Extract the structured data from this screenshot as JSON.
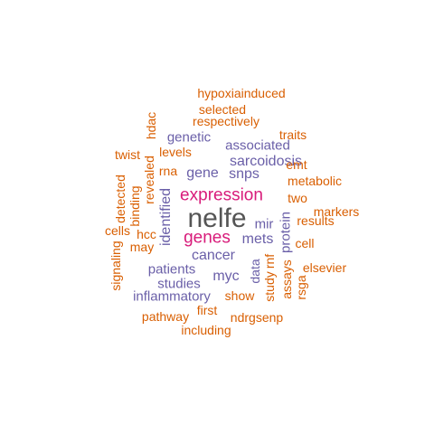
{
  "colors": {
    "orange": "#d95f02",
    "purple": "#6a5fa8",
    "pink": "#d81b7a",
    "gray": "#555555"
  },
  "words": [
    {
      "text": "nelfe",
      "color": "gray"
    },
    {
      "text": "expression",
      "color": "pink"
    },
    {
      "text": "genes",
      "color": "pink"
    },
    {
      "text": "cancer",
      "color": "purple"
    },
    {
      "text": "sarcoidosis",
      "color": "purple"
    },
    {
      "text": "mets",
      "color": "purple"
    },
    {
      "text": "snps",
      "color": "purple"
    },
    {
      "text": "gene",
      "color": "purple"
    },
    {
      "text": "associated",
      "color": "purple"
    },
    {
      "text": "genetic",
      "color": "purple"
    },
    {
      "text": "patients",
      "color": "purple"
    },
    {
      "text": "studies",
      "color": "purple"
    },
    {
      "text": "myc",
      "color": "purple"
    },
    {
      "text": "inflammatory",
      "color": "purple"
    },
    {
      "text": "identified",
      "color": "purple"
    },
    {
      "text": "mir",
      "color": "purple"
    },
    {
      "text": "protein",
      "color": "purple"
    },
    {
      "text": "data",
      "color": "purple"
    },
    {
      "text": "hypoxiainduced",
      "color": "orange"
    },
    {
      "text": "selected",
      "color": "orange"
    },
    {
      "text": "respectively",
      "color": "orange"
    },
    {
      "text": "hdac",
      "color": "orange"
    },
    {
      "text": "traits",
      "color": "orange"
    },
    {
      "text": "twist",
      "color": "orange"
    },
    {
      "text": "levels",
      "color": "orange"
    },
    {
      "text": "emt",
      "color": "orange"
    },
    {
      "text": "rna",
      "color": "orange"
    },
    {
      "text": "revealed",
      "color": "orange"
    },
    {
      "text": "metabolic",
      "color": "orange"
    },
    {
      "text": "detected",
      "color": "orange"
    },
    {
      "text": "binding",
      "color": "orange"
    },
    {
      "text": "two",
      "color": "orange"
    },
    {
      "text": "markers",
      "color": "orange"
    },
    {
      "text": "results",
      "color": "orange"
    },
    {
      "text": "cells",
      "color": "orange"
    },
    {
      "text": "hcc",
      "color": "orange"
    },
    {
      "text": "cell",
      "color": "orange"
    },
    {
      "text": "may",
      "color": "orange"
    },
    {
      "text": "signaling",
      "color": "orange"
    },
    {
      "text": "elsevier",
      "color": "orange"
    },
    {
      "text": "rnf",
      "color": "orange"
    },
    {
      "text": "study",
      "color": "orange"
    },
    {
      "text": "assays",
      "color": "orange"
    },
    {
      "text": "rsga",
      "color": "orange"
    },
    {
      "text": "show",
      "color": "orange"
    },
    {
      "text": "first",
      "color": "orange"
    },
    {
      "text": "pathway",
      "color": "orange"
    },
    {
      "text": "ndrgsenp",
      "color": "orange"
    },
    {
      "text": "including",
      "color": "orange"
    }
  ]
}
